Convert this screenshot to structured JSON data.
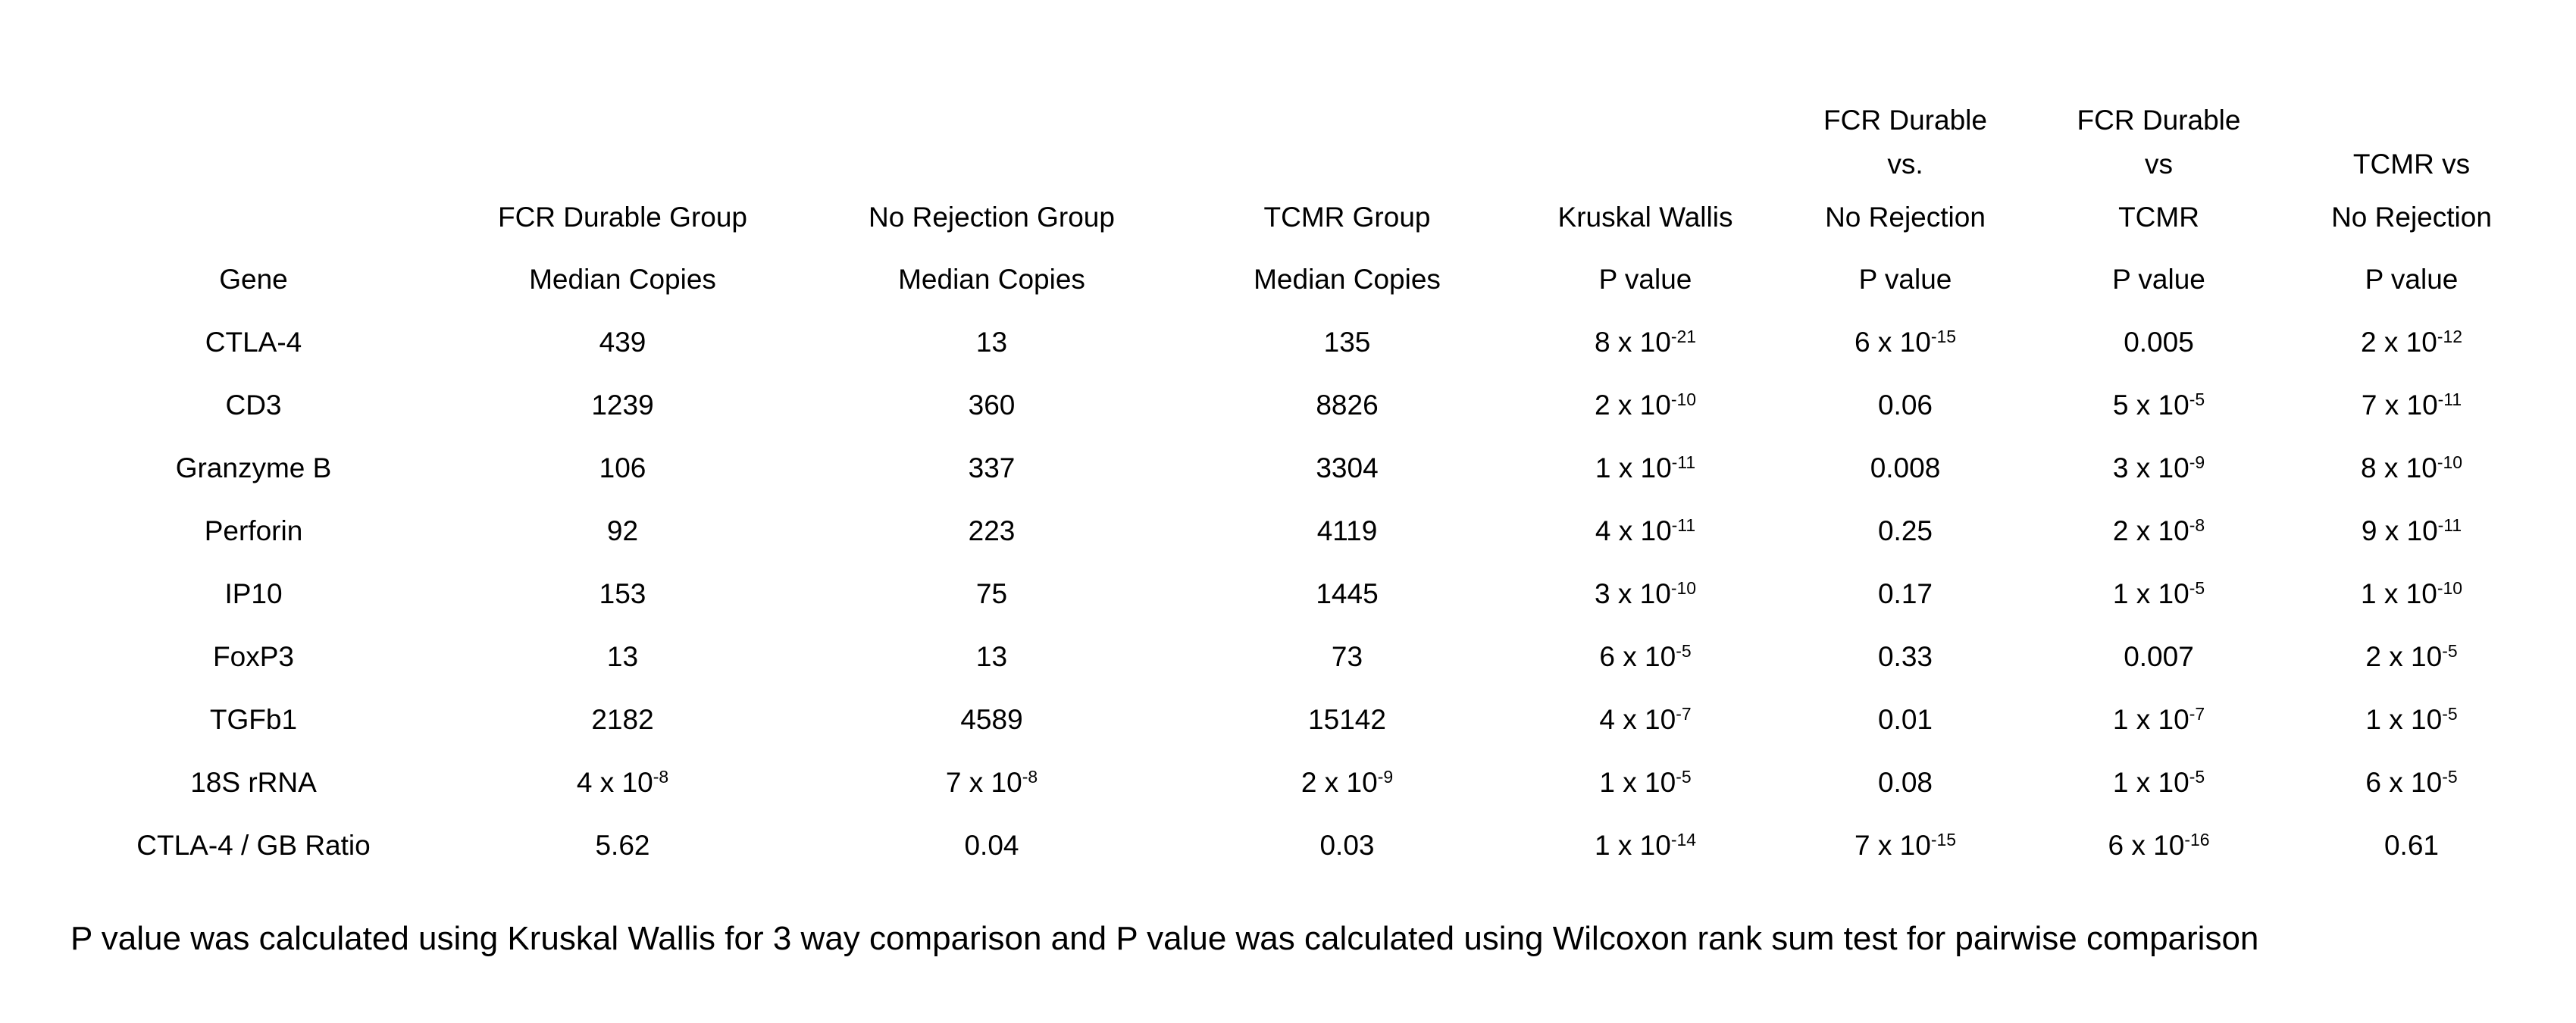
{
  "colors": {
    "text": "#000000",
    "background": "#ffffff"
  },
  "table": {
    "columns": [
      {
        "header_lines": [
          "Gene"
        ]
      },
      {
        "header_lines": [
          "FCR Durable Group",
          "Median Copies"
        ]
      },
      {
        "header_lines": [
          "No Rejection Group",
          "Median Copies"
        ]
      },
      {
        "header_lines": [
          "TCMR Group",
          "Median Copies"
        ]
      },
      {
        "header_lines": [
          "Kruskal Wallis",
          "P value"
        ]
      },
      {
        "header_lines": [
          "FCR Durable",
          "vs.",
          "No Rejection",
          "P value"
        ]
      },
      {
        "header_lines": [
          "FCR Durable",
          "vs",
          "TCMR",
          "P value"
        ]
      },
      {
        "header_lines": [
          "TCMR vs",
          "No Rejection",
          "P value"
        ]
      }
    ],
    "rows": [
      [
        "CTLA-4",
        "439",
        "13",
        "135",
        "8 x 10^-21",
        "6 x 10^-15",
        "0.005",
        "2 x 10^-12"
      ],
      [
        "CD3",
        "1239",
        "360",
        "8826",
        "2 x 10^-10",
        "0.06",
        "5 x 10^-5",
        "7 x 10^-11"
      ],
      [
        "Granzyme B",
        "106",
        "337",
        "3304",
        "1 x 10^-11",
        "0.008",
        "3 x 10^-9",
        "8 x 10^-10"
      ],
      [
        "Perforin",
        "92",
        "223",
        "4119",
        "4 x 10^-11",
        "0.25",
        "2 x 10^-8",
        "9 x 10^-11"
      ],
      [
        "IP10",
        "153",
        "75",
        "1445",
        "3 x 10^-10",
        "0.17",
        "1 x 10^-5",
        "1 x 10^-10"
      ],
      [
        "FoxP3",
        "13",
        "13",
        "73",
        "6 x 10^-5",
        "0.33",
        "0.007",
        "2 x 10^-5"
      ],
      [
        "TGFb1",
        "2182",
        "4589",
        "15142",
        "4 x 10^-7",
        "0.01",
        "1 x 10^-7",
        "1 x 10^-5"
      ],
      [
        "18S rRNA",
        "4 x 10^-8",
        "7 x 10^-8",
        "2 x 10^-9",
        "1 x 10^-5",
        "0.08",
        "1 x 10^-5",
        "6 x 10^-5"
      ],
      [
        "CTLA-4 / GB Ratio",
        "5.62",
        "0.04",
        "0.03",
        "1 x 10^-14",
        "7 x 10^-15",
        "6 x 10^-16",
        "0.61"
      ]
    ]
  },
  "footnote": "P value was calculated using Kruskal Wallis for 3 way comparison and P value was calculated using Wilcoxon rank sum test for pairwise comparison"
}
